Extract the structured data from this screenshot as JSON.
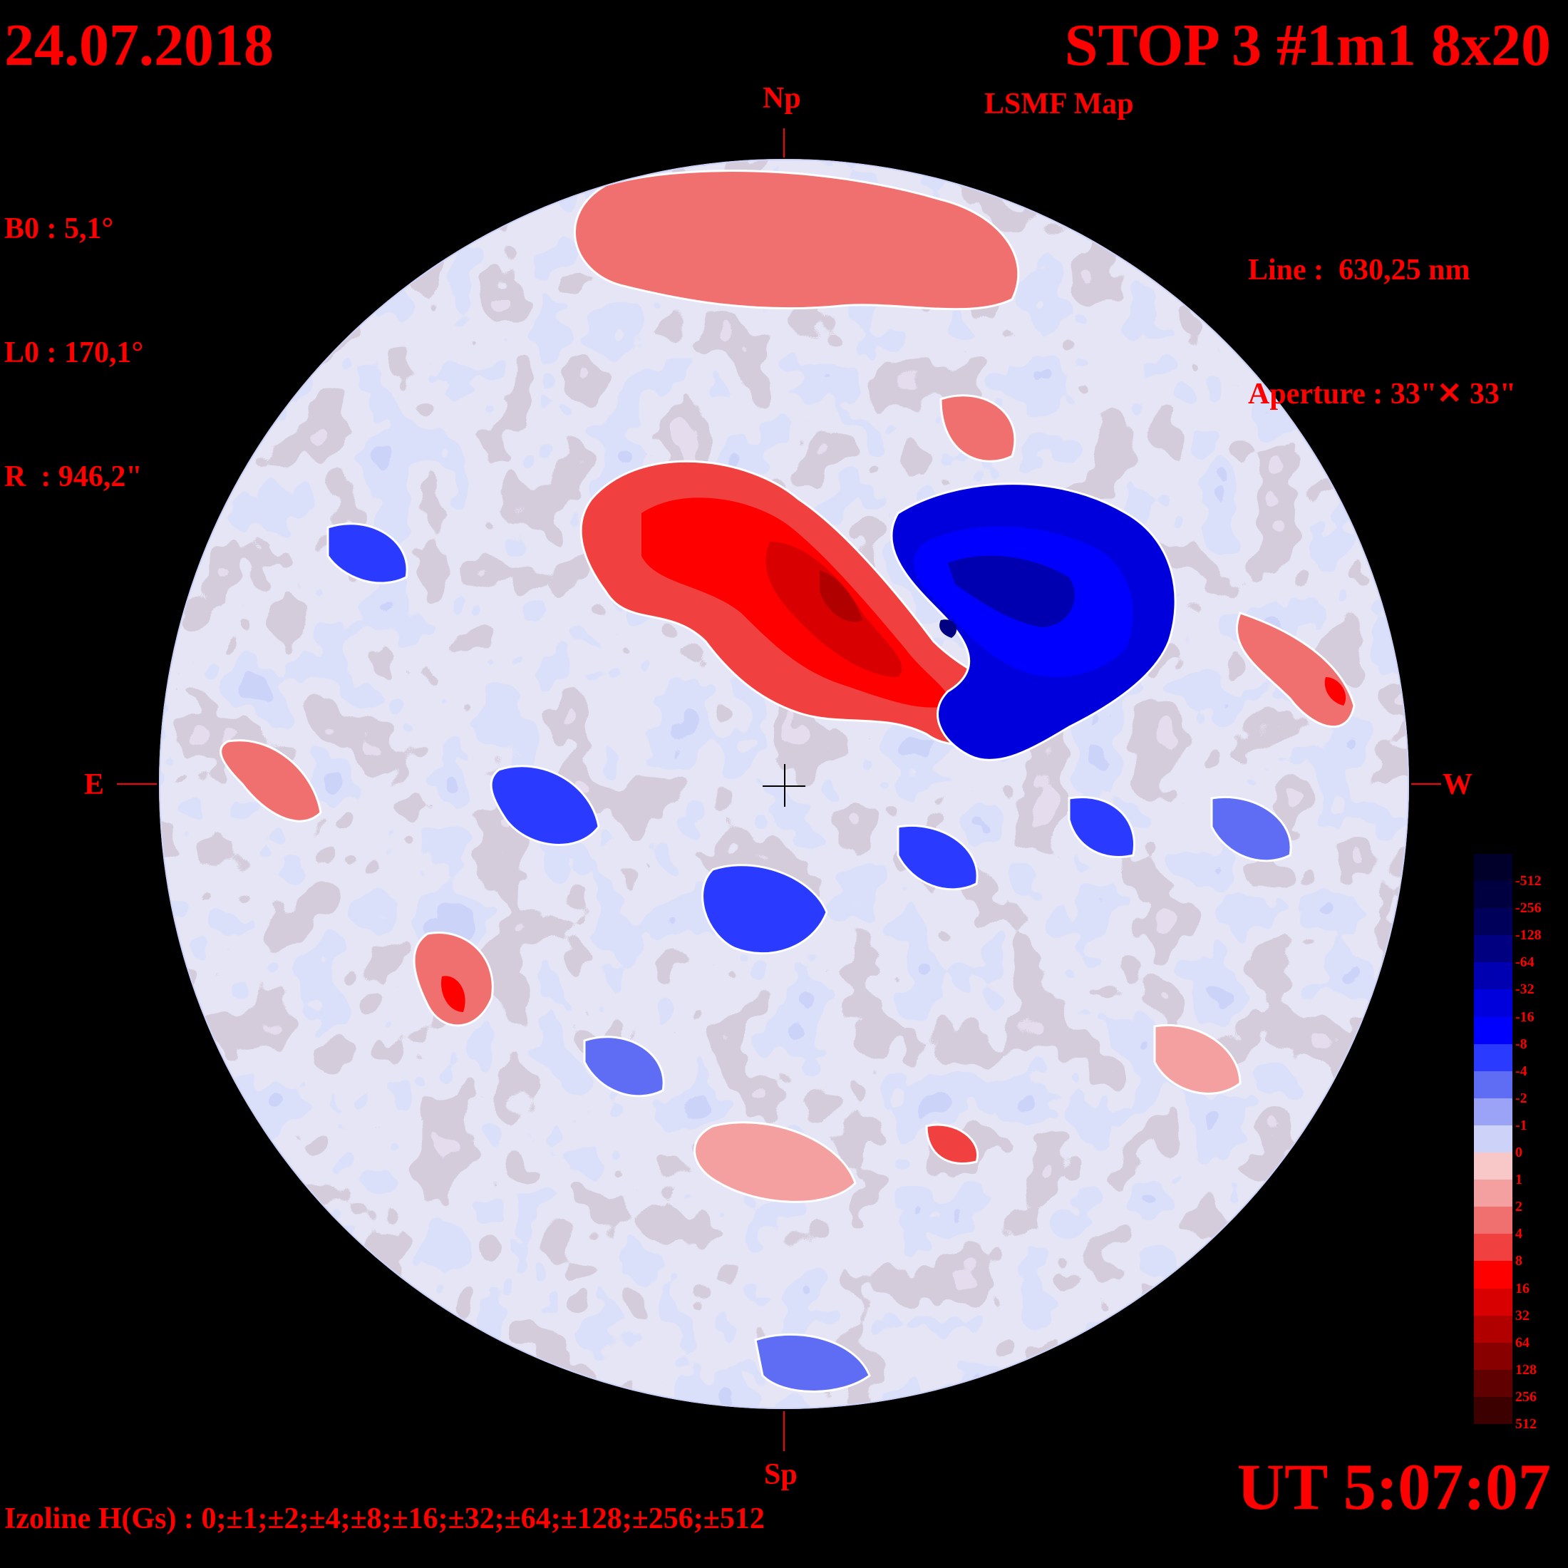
{
  "header": {
    "date": "24.07.2018",
    "title": "STOP 3 #1m1 8x20",
    "subtitle": "LSMF  Map"
  },
  "params": {
    "b0": "B0 : 5,1°",
    "l0": "L0 : 170,1°",
    "r": "R  : 946,2\""
  },
  "instrument": {
    "line": "Line :  630,25 nm",
    "aperture": "Aperture : 33\"✕ 33\""
  },
  "cardinal": {
    "north": "Np",
    "south": "Sp",
    "east": "E",
    "west": "W"
  },
  "time": "UT 5:07:07",
  "izoline": "Izoline H(Gs) : 0;±1;±2;±4;±8;±16;±32;±64;±128;±256;±512",
  "colors": {
    "background": "#000000",
    "text": "#ff0000",
    "contour": "#ffffff",
    "center_cross": "#000000"
  },
  "scale": {
    "labels": [
      "-512",
      "-256",
      "-128",
      "-64",
      "-32",
      "-16",
      "-8",
      "-4",
      "-2",
      "-1",
      "0",
      "1",
      "2",
      "4",
      "8",
      "16",
      "32",
      "64",
      "128",
      "256",
      "512"
    ],
    "colors": [
      "#00002a",
      "#000040",
      "#00005a",
      "#000080",
      "#0000b0",
      "#0000dd",
      "#0000ff",
      "#2a3aff",
      "#5f6df5",
      "#9aa3f5",
      "#cdd3f8",
      "#f8c8c8",
      "#f4a0a0",
      "#f07070",
      "#f04040",
      "#ff0000",
      "#d80000",
      "#b00000",
      "#880000",
      "#600000",
      "#3c0000"
    ]
  }
}
